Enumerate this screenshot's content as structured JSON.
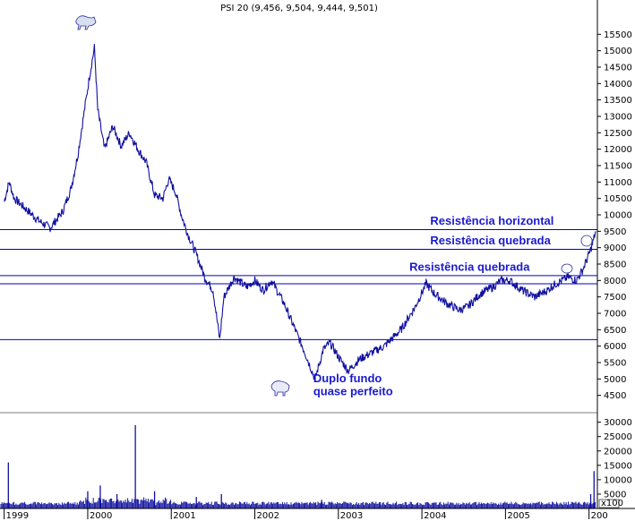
{
  "chart_data": {
    "type": "line",
    "title": "PSI 20 (9,456, 9,504, 9,444, 9,501)",
    "x_ticks": [
      "1999",
      "2000",
      "2001",
      "2002",
      "2003",
      "2004",
      "2005",
      "200"
    ],
    "price_axis": {
      "ylim": [
        4000,
        16000
      ],
      "ticks": [
        4500,
        5000,
        5500,
        6000,
        6500,
        7000,
        7500,
        8000,
        8500,
        9000,
        9500,
        10000,
        10500,
        11000,
        11500,
        12000,
        12500,
        13000,
        13500,
        14000,
        14500,
        15000,
        15500
      ]
    },
    "volume_axis": {
      "ylim": [
        0,
        33000
      ],
      "ticks": [
        5000,
        10000,
        15000,
        20000,
        25000,
        30000
      ],
      "unit_label": "x100"
    },
    "series": [
      {
        "values": [
          {
            "x": 1999.0,
            "y": 10400
          },
          {
            "x": 1999.06,
            "y": 11000
          },
          {
            "x": 1999.12,
            "y": 10500
          },
          {
            "x": 1999.25,
            "y": 10200
          },
          {
            "x": 1999.4,
            "y": 9850
          },
          {
            "x": 1999.55,
            "y": 9600
          },
          {
            "x": 1999.7,
            "y": 10100
          },
          {
            "x": 1999.8,
            "y": 10800
          },
          {
            "x": 1999.88,
            "y": 11800
          },
          {
            "x": 1999.95,
            "y": 13000
          },
          {
            "x": 2000.02,
            "y": 14200
          },
          {
            "x": 2000.08,
            "y": 15100
          },
          {
            "x": 2000.12,
            "y": 13200
          },
          {
            "x": 2000.2,
            "y": 12000
          },
          {
            "x": 2000.3,
            "y": 12700
          },
          {
            "x": 2000.4,
            "y": 12100
          },
          {
            "x": 2000.5,
            "y": 12500
          },
          {
            "x": 2000.6,
            "y": 12000
          },
          {
            "x": 2000.7,
            "y": 11600
          },
          {
            "x": 2000.8,
            "y": 10600
          },
          {
            "x": 2000.9,
            "y": 10500
          },
          {
            "x": 2000.97,
            "y": 11100
          },
          {
            "x": 2001.05,
            "y": 10700
          },
          {
            "x": 2001.12,
            "y": 10000
          },
          {
            "x": 2001.2,
            "y": 9400
          },
          {
            "x": 2001.3,
            "y": 8800
          },
          {
            "x": 2001.4,
            "y": 8100
          },
          {
            "x": 2001.5,
            "y": 7700
          },
          {
            "x": 2001.58,
            "y": 6200
          },
          {
            "x": 2001.63,
            "y": 7500
          },
          {
            "x": 2001.75,
            "y": 8100
          },
          {
            "x": 2001.9,
            "y": 7800
          },
          {
            "x": 2002.0,
            "y": 8000
          },
          {
            "x": 2002.1,
            "y": 7700
          },
          {
            "x": 2002.2,
            "y": 8000
          },
          {
            "x": 2002.35,
            "y": 7300
          },
          {
            "x": 2002.5,
            "y": 6400
          },
          {
            "x": 2002.6,
            "y": 5800
          },
          {
            "x": 2002.72,
            "y": 5000
          },
          {
            "x": 2002.82,
            "y": 5900
          },
          {
            "x": 2002.9,
            "y": 6100
          },
          {
            "x": 2003.02,
            "y": 5600
          },
          {
            "x": 2003.12,
            "y": 5250
          },
          {
            "x": 2003.25,
            "y": 5600
          },
          {
            "x": 2003.4,
            "y": 5800
          },
          {
            "x": 2003.55,
            "y": 6000
          },
          {
            "x": 2003.75,
            "y": 6500
          },
          {
            "x": 2003.92,
            "y": 7200
          },
          {
            "x": 2004.05,
            "y": 7900
          },
          {
            "x": 2004.15,
            "y": 7600
          },
          {
            "x": 2004.3,
            "y": 7300
          },
          {
            "x": 2004.45,
            "y": 7100
          },
          {
            "x": 2004.55,
            "y": 7200
          },
          {
            "x": 2004.7,
            "y": 7600
          },
          {
            "x": 2004.85,
            "y": 7800
          },
          {
            "x": 2004.95,
            "y": 8000
          },
          {
            "x": 2005.05,
            "y": 8000
          },
          {
            "x": 2005.2,
            "y": 7700
          },
          {
            "x": 2005.35,
            "y": 7500
          },
          {
            "x": 2005.5,
            "y": 7700
          },
          {
            "x": 2005.6,
            "y": 7900
          },
          {
            "x": 2005.75,
            "y": 8100
          },
          {
            "x": 2005.85,
            "y": 8000
          },
          {
            "x": 2005.92,
            "y": 8300
          },
          {
            "x": 2006.0,
            "y": 8800
          },
          {
            "x": 2006.04,
            "y": 9100
          },
          {
            "x": 2006.08,
            "y": 9500
          }
        ]
      }
    ],
    "volume": [
      {
        "x": 1999.05,
        "v": 16000
      },
      {
        "x": 2000.0,
        "v": 6000
      },
      {
        "x": 2000.15,
        "v": 8000
      },
      {
        "x": 2000.35,
        "v": 5000
      },
      {
        "x": 2000.57,
        "v": 29000
      },
      {
        "x": 2000.8,
        "v": 6000
      },
      {
        "x": 2001.3,
        "v": 4000
      },
      {
        "x": 2001.6,
        "v": 5000
      },
      {
        "x": 2002.8,
        "v": 3000
      },
      {
        "x": 2006.02,
        "v": 5000
      },
      {
        "x": 2006.06,
        "v": 13000
      }
    ],
    "horizontal_lines": [
      9550,
      8950,
      8150,
      7900,
      6200
    ],
    "annotations": [
      {
        "text": "Resistência horizontal",
        "x": 2004.1,
        "y": 9700
      },
      {
        "text": "Resistência quebrada",
        "x": 2004.1,
        "y": 9100
      },
      {
        "text": "Resistência quebrada",
        "x": 2003.85,
        "y": 8300
      },
      {
        "text": "Duplo fundo",
        "x": 2002.7,
        "y": 4900
      },
      {
        "text": "quase perfeito",
        "x": 2002.7,
        "y": 4500
      }
    ],
    "colors": {
      "line": "#1010a0",
      "hline": "#0000cc",
      "annotation": "#1a1ad0",
      "volume": "#1010a0",
      "grid": "#000000"
    },
    "grid": false
  }
}
